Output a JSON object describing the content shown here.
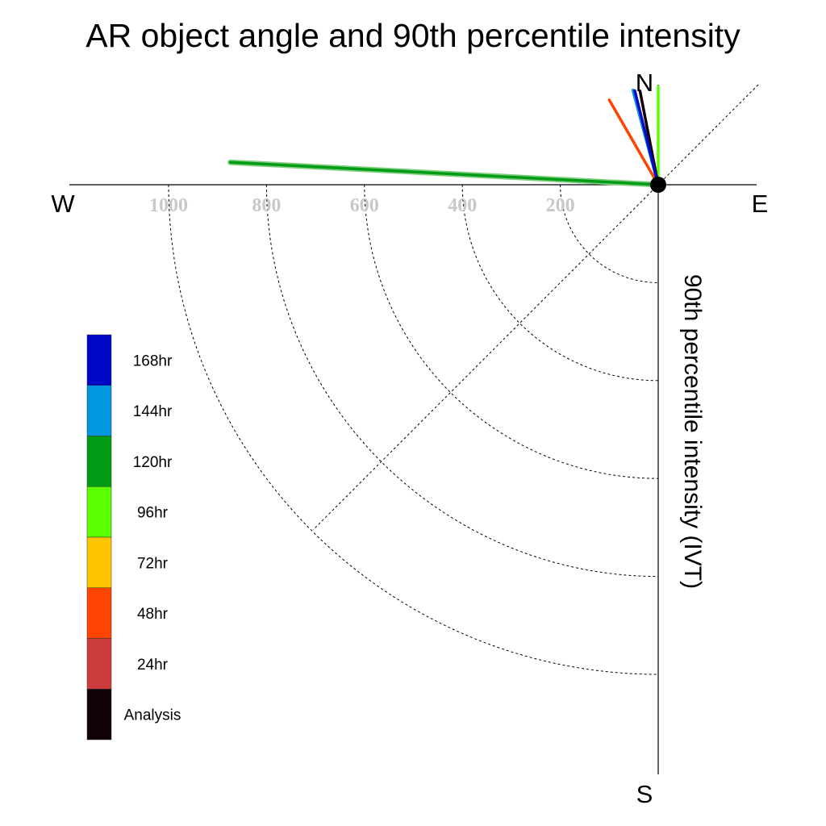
{
  "chart_data": {
    "type": "polar-line",
    "title": "AR object angle and 90th percentile intensity",
    "ylabel": "90th percentile intensity (IVT)",
    "directions": {
      "north": "N",
      "south": "S",
      "east": "E",
      "west": "W"
    },
    "radial_ticks": [
      200,
      400,
      600,
      800,
      1000
    ],
    "rlim": [
      0,
      1000
    ],
    "angle_convention": "compass degrees clockwise from N",
    "legend_location": "left",
    "legend": [
      {
        "label": "168hr",
        "color": "#0008c8"
      },
      {
        "label": "144hr",
        "color": "#0096e0"
      },
      {
        "label": "120hr",
        "color": "#009c16"
      },
      {
        "label": "96hr",
        "color": "#5cff00"
      },
      {
        "label": "72hr",
        "color": "#ffc400"
      },
      {
        "label": "48hr",
        "color": "#ff4300"
      },
      {
        "label": "24hr",
        "color": "#cc3c3c"
      },
      {
        "label": "Analysis",
        "color": "#100008"
      }
    ],
    "series": [
      {
        "name": "120hr",
        "color": "#009c16",
        "angle": 273,
        "value": 875
      },
      {
        "name": "96hr",
        "color": "#5cff00",
        "angle": 0,
        "value": 200
      },
      {
        "name": "48hr",
        "color": "#ff4300",
        "angle": 330,
        "value": 200
      },
      {
        "name": "24hr",
        "color": "#cc3c3c",
        "angle": 345,
        "value": 190
      },
      {
        "name": "Analysis",
        "color": "#100008",
        "angle": 349,
        "value": 195
      },
      {
        "name": "144hr",
        "color": "#0096e0",
        "angle": 345,
        "value": 200
      },
      {
        "name": "168hr",
        "color": "#0008c8",
        "angle": 346,
        "value": 198
      }
    ]
  }
}
